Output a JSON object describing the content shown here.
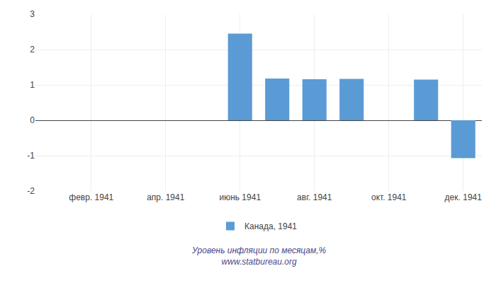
{
  "chart_data": {
    "type": "bar",
    "categories": [
      null,
      "февр. 1941",
      null,
      "апр. 1941",
      null,
      "июнь 1941",
      null,
      "авг. 1941",
      null,
      "окт. 1941",
      null,
      "дек. 1941"
    ],
    "series": [
      {
        "name": "Канада, 1941",
        "color": "#5B9BD5",
        "values": [
          0,
          0,
          0,
          0,
          0,
          2.45,
          1.18,
          1.16,
          1.17,
          0,
          1.15,
          -1.07
        ]
      }
    ],
    "ylim": [
      -2,
      3
    ],
    "yticks": [
      -2,
      -1,
      0,
      1,
      2,
      3
    ],
    "grid": true,
    "legend": "bottom",
    "annotations": [
      {
        "text": "Уровень инфляции по месяцам,%\nwww.statbureau.org",
        "color": "#4a4a8a"
      }
    ]
  }
}
